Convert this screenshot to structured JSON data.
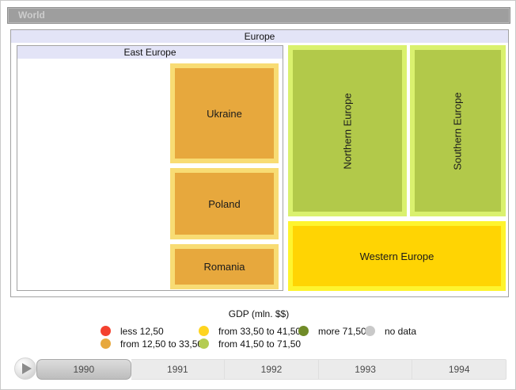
{
  "header": {
    "root_label": "World"
  },
  "chart_data": {
    "type": "treemap",
    "title": "GDP (mln. $$)",
    "root": "World",
    "selected_year": "1990",
    "years": [
      "1990",
      "1991",
      "1992",
      "1993",
      "1994"
    ],
    "legend_position": "bottom",
    "nodes": [
      {
        "name": "Europe",
        "parent": "World",
        "kind": "group"
      },
      {
        "name": "East Europe",
        "parent": "Europe",
        "kind": "group"
      },
      {
        "name": "Ukraine",
        "parent": "East Europe",
        "kind": "leaf",
        "gdp_bin": "from 12,50 to 33,50",
        "color": "#e7a83d",
        "border": "#f8dc74",
        "relative_area": "large"
      },
      {
        "name": "Poland",
        "parent": "East Europe",
        "kind": "leaf",
        "gdp_bin": "from 12,50 to 33,50",
        "color": "#e7a83d",
        "border": "#f8dc74",
        "relative_area": "medium"
      },
      {
        "name": "Romania",
        "parent": "East Europe",
        "kind": "leaf",
        "gdp_bin": "from 12,50 to 33,50",
        "color": "#e7a83d",
        "border": "#f8dc74",
        "relative_area": "small"
      },
      {
        "name": "Northern Europe",
        "parent": "Europe",
        "kind": "leaf",
        "gdp_bin": "from 41,50 to 71,50",
        "color": "#b2c94a",
        "border": "#daf16e",
        "relative_area": "large"
      },
      {
        "name": "Southern Europe",
        "parent": "Europe",
        "kind": "leaf",
        "gdp_bin": "from 41,50 to 71,50",
        "color": "#b2c94a",
        "border": "#daf16e",
        "relative_area": "large"
      },
      {
        "name": "Western Europe",
        "parent": "Europe",
        "kind": "leaf",
        "gdp_bin": "from 33,50 to 41,50",
        "color": "#ffd403",
        "border": "#fef42e",
        "relative_area": "large"
      }
    ],
    "legend_bins": [
      {
        "label": "less 12,50",
        "color": "#f4412f"
      },
      {
        "label": "from 12,50 to 33,50",
        "color": "#e7a83d"
      },
      {
        "label": "from 33,50 to 41,50",
        "color": "#fed41f"
      },
      {
        "label": "from 41,50 to 71,50",
        "color": "#b4cc52"
      },
      {
        "label": "more 71,50",
        "color": "#708b28"
      },
      {
        "label": "no data",
        "color": "#c9c9c9"
      }
    ]
  }
}
